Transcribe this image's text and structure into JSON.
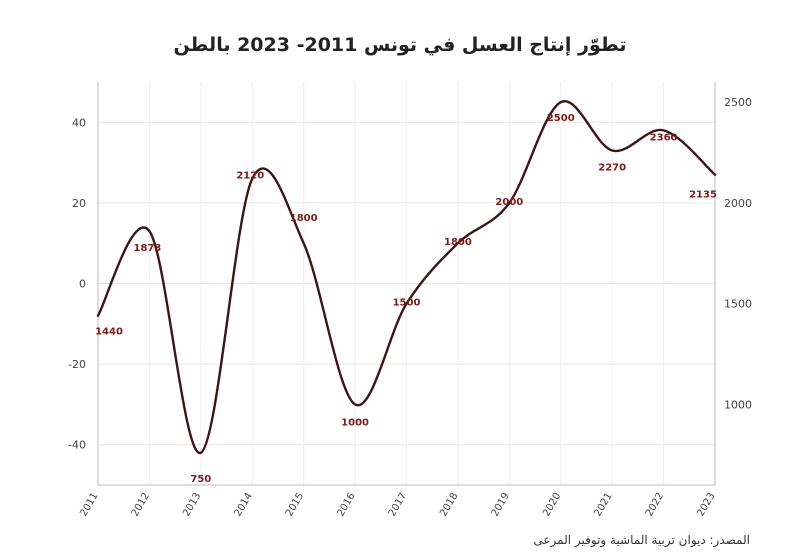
{
  "chart_data": {
    "type": "line",
    "title": "تطوّر إنتاج العسل في تونس 2011- 2023 بالطن",
    "source": "المصدر: ديوان تربية الماشية وتوفير المرعى",
    "x": [
      "2011",
      "2012",
      "2013",
      "2014",
      "2015",
      "2016",
      "2017",
      "2018",
      "2019",
      "2020",
      "2021",
      "2022",
      "2023"
    ],
    "series": [
      {
        "values": [
          1440,
          1873,
          750,
          2120,
          1800,
          1000,
          1500,
          1800,
          2000,
          2500,
          2270,
          2360,
          2135
        ]
      }
    ],
    "line_y_left": [
      -8,
      13,
      -42,
      26,
      10,
      -30,
      -5,
      10,
      20,
      45,
      33,
      38,
      27
    ],
    "left_axis": {
      "ylim": [
        -50,
        50
      ],
      "ticks": [
        "40",
        "20",
        "0",
        "-20",
        "-40"
      ],
      "tick_values": [
        40,
        20,
        0,
        -20,
        -40
      ]
    },
    "right_axis": {
      "ticks": [
        "2500",
        "2000",
        "1500",
        "1000"
      ],
      "tick_values": [
        2500,
        2000,
        1500,
        1000
      ]
    },
    "grid": true,
    "line_color": "#3d1515",
    "label_color": "#7a1c1c"
  }
}
